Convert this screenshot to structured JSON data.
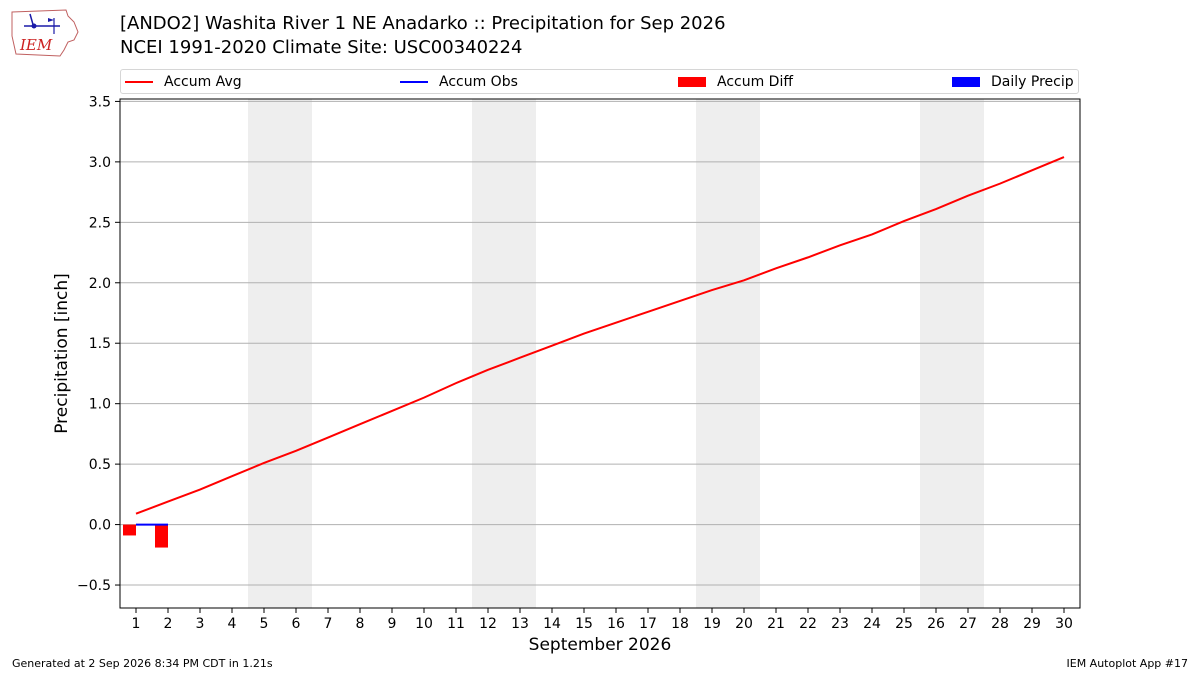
{
  "header": {
    "title_line_1": "[ANDO2] Washita River 1 NE Anadarko :: Precipitation for Sep 2026",
    "title_line_2": "NCEI 1991-2020 Climate Site: USC00340224"
  },
  "logo": {
    "text": "IEM"
  },
  "footer": {
    "generated": "Generated at 2 Sep 2026 8:34 PM CDT in 1.21s",
    "app": "IEM Autoplot App #17"
  },
  "colors": {
    "accum_avg": "#ff0000",
    "accum_obs": "#0000ff",
    "accum_diff": "#ff0000",
    "daily_precip": "#0000ff",
    "weekend_shade": "#eeeeee",
    "grid": "#b0b0b0"
  },
  "chart_data": {
    "type": "line",
    "title": "[ANDO2] Washita River 1 NE Anadarko :: Precipitation for Sep 2026",
    "subtitle": "NCEI 1991-2020 Climate Site: USC00340224",
    "xlabel": "September 2026",
    "ylabel": "Precipitation [inch]",
    "x_ticks": [
      1,
      2,
      3,
      4,
      5,
      6,
      7,
      8,
      9,
      10,
      11,
      12,
      13,
      14,
      15,
      16,
      17,
      18,
      19,
      20,
      21,
      22,
      23,
      24,
      25,
      26,
      27,
      28,
      29,
      30
    ],
    "xlim": [
      0.5,
      30.5
    ],
    "ylim": [
      -0.69,
      3.52
    ],
    "y_ticks": [
      -0.5,
      0.0,
      0.5,
      1.0,
      1.5,
      2.0,
      2.5,
      3.0,
      3.5
    ],
    "y_tick_labels": [
      "−0.5",
      "0.0",
      "0.5",
      "1.0",
      "1.5",
      "2.0",
      "2.5",
      "3.0",
      "3.5"
    ],
    "grid": "horizontal",
    "legend_position": "top",
    "weekend_spans": [
      [
        4.5,
        6.5
      ],
      [
        11.5,
        13.5
      ],
      [
        18.5,
        20.5
      ],
      [
        25.5,
        27.5
      ]
    ],
    "series": [
      {
        "name": "Accum Avg",
        "kind": "line",
        "x": [
          1,
          2,
          3,
          4,
          5,
          6,
          7,
          8,
          9,
          10,
          11,
          12,
          13,
          14,
          15,
          16,
          17,
          18,
          19,
          20,
          21,
          22,
          23,
          24,
          25,
          26,
          27,
          28,
          29,
          30
        ],
        "values": [
          0.09,
          0.19,
          0.29,
          0.4,
          0.51,
          0.61,
          0.72,
          0.83,
          0.94,
          1.05,
          1.17,
          1.28,
          1.38,
          1.48,
          1.58,
          1.67,
          1.76,
          1.85,
          1.94,
          2.02,
          2.12,
          2.21,
          2.31,
          2.4,
          2.51,
          2.61,
          2.72,
          2.82,
          2.93,
          3.04
        ]
      },
      {
        "name": "Accum Obs",
        "kind": "line",
        "x": [
          1,
          2
        ],
        "values": [
          0.0,
          0.0
        ]
      },
      {
        "name": "Accum Diff",
        "kind": "bar",
        "x": [
          1,
          2
        ],
        "values": [
          -0.09,
          -0.19
        ]
      },
      {
        "name": "Daily Precip",
        "kind": "bar",
        "x": [
          1,
          2
        ],
        "values": [
          0.0,
          0.0
        ]
      }
    ]
  }
}
